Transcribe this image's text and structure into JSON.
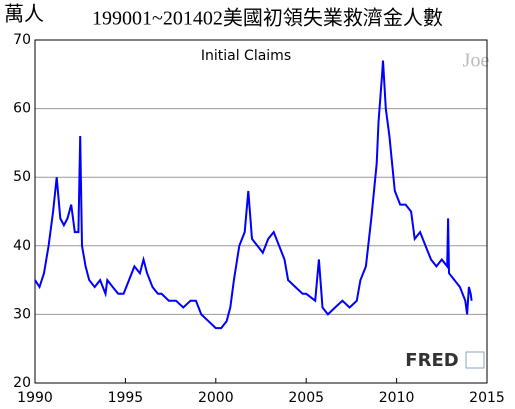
{
  "chart_data": {
    "type": "line",
    "unit": "萬人",
    "title": "199001~201402美國初領失業救濟金人數",
    "annotation": "Initial Claims",
    "watermark": "Joe",
    "logo": "FRED",
    "x": [
      1990.0,
      1990.25,
      1990.5,
      1990.75,
      1991.0,
      1991.2,
      1991.4,
      1991.6,
      1991.8,
      1992.0,
      1992.2,
      1992.4,
      1992.5,
      1992.6,
      1992.8,
      1993.0,
      1993.3,
      1993.6,
      1993.9,
      1994.0,
      1994.3,
      1994.6,
      1994.9,
      1995.2,
      1995.5,
      1995.8,
      1996.0,
      1996.2,
      1996.5,
      1996.8,
      1997.0,
      1997.4,
      1997.8,
      1998.2,
      1998.6,
      1998.9,
      1999.2,
      1999.6,
      2000.0,
      2000.3,
      2000.6,
      2000.8,
      2001.0,
      2001.3,
      2001.6,
      2001.8,
      2002.0,
      2002.3,
      2002.6,
      2002.9,
      2003.2,
      2003.5,
      2003.8,
      2004.0,
      2004.4,
      2004.8,
      2005.0,
      2005.5,
      2005.7,
      2005.9,
      2006.2,
      2006.6,
      2007.0,
      2007.4,
      2007.8,
      2008.0,
      2008.3,
      2008.6,
      2008.9,
      2009.0,
      2009.2,
      2009.25,
      2009.4,
      2009.6,
      2009.9,
      2010.2,
      2010.5,
      2010.8,
      2011.0,
      2011.3,
      2011.6,
      2011.9,
      2012.2,
      2012.5,
      2012.8,
      2012.85,
      2012.9,
      2013.2,
      2013.5,
      2013.8,
      2013.9,
      2014.0,
      2014.1,
      2014.15
    ],
    "series": [
      {
        "name": "Initial Claims",
        "color": "#0000ff",
        "values": [
          35,
          34,
          36,
          40,
          45,
          50,
          44,
          43,
          44,
          46,
          42,
          42,
          56,
          40,
          37,
          35,
          34,
          35,
          33,
          35,
          34,
          33,
          33,
          35,
          37,
          36,
          38,
          36,
          34,
          33,
          33,
          32,
          32,
          31,
          32,
          32,
          30,
          29,
          28,
          28,
          29,
          31,
          35,
          40,
          42,
          48,
          41,
          40,
          39,
          41,
          42,
          40,
          38,
          35,
          34,
          33,
          33,
          32,
          38,
          31,
          30,
          31,
          32,
          31,
          32,
          35,
          37,
          44,
          52,
          58,
          65,
          67,
          60,
          56,
          48,
          46,
          46,
          45,
          41,
          42,
          40,
          38,
          37,
          38,
          37,
          44,
          36,
          35,
          34,
          32,
          30,
          34,
          33,
          32
        ]
      }
    ],
    "xlim": [
      1990,
      2015
    ],
    "xticks": [
      1990,
      1995,
      2000,
      2005,
      2010,
      2015
    ],
    "ylim": [
      20,
      70
    ],
    "yticks": [
      20,
      30,
      40,
      50,
      60,
      70
    ],
    "grid": true
  }
}
